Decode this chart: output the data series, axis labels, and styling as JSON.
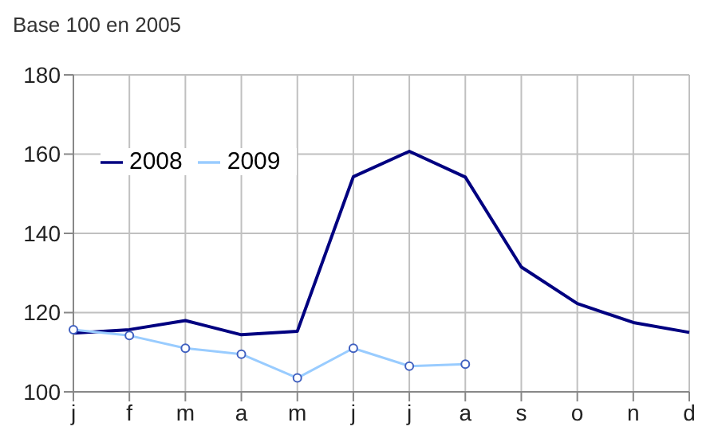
{
  "chart_data": {
    "type": "line",
    "ylabel": "Base 100 en 2005",
    "categories": [
      "j",
      "f",
      "m",
      "a",
      "m",
      "j",
      "j",
      "a",
      "s",
      "o",
      "n",
      "d"
    ],
    "series": [
      {
        "name": "2008",
        "color": "#000080",
        "marker": "none",
        "values": [
          114.8,
          115.7,
          118,
          114.4,
          115.3,
          154.3,
          160.7,
          154.2,
          131.5,
          122.3,
          117.5,
          115
        ]
      },
      {
        "name": "2009",
        "color": "#99ccff",
        "marker": "circle",
        "values": [
          115.7,
          114.2,
          111,
          109.5,
          103.5,
          111,
          106.5,
          107,
          null,
          null,
          null,
          null
        ]
      }
    ],
    "ylim": [
      100,
      180
    ],
    "yticks": [
      100,
      120,
      140,
      160,
      180
    ],
    "grid": true,
    "legend": "top left"
  }
}
